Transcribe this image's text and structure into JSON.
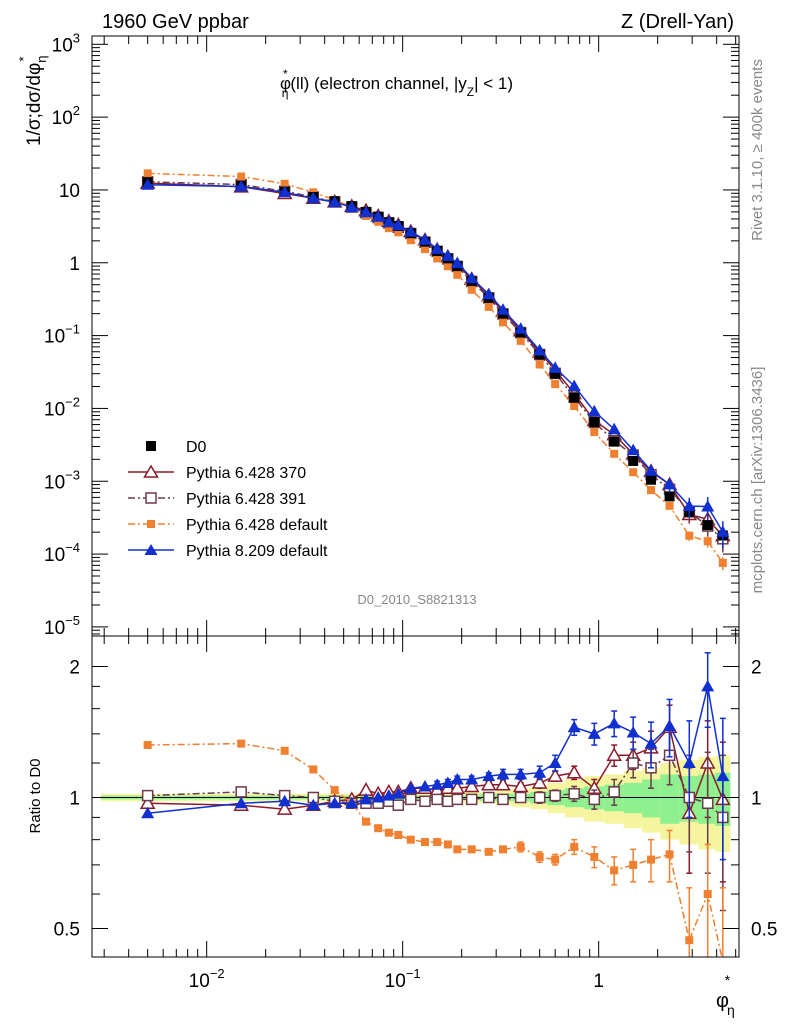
{
  "header": {
    "left_title": "1960 GeV ppbar",
    "right_title": "Z (Drell-Yan)",
    "plot_title_main": "φ",
    "plot_title_sup": "*",
    "plot_title_sub": "η",
    "plot_title_rest": "(ll) (electron channel, |y",
    "plot_title_ysub": "Z",
    "plot_title_end": "| < 1)",
    "analysis_id": "D0_2010_S8821313",
    "side_rivet": "Rivet 3.1.10, ≥ 400k events",
    "side_source": "mcplots.cern.ch [arXiv:1306.3436]"
  },
  "axes": {
    "main_ylabel": "1/σ;dσ/dφ",
    "main_ylabel_sub": "η",
    "main_ylabel_sup": "*",
    "ratio_ylabel": "Ratio to D0",
    "xlabel": "φ",
    "xlabel_sub": "η",
    "xlabel_sup": "*",
    "x_tick_labels": [
      {
        "base": "10",
        "exp": "−2"
      },
      {
        "base": "10",
        "exp": "−1"
      },
      {
        "base": "1",
        "exp": ""
      }
    ],
    "main_y_tick_labels": [
      {
        "base": "10",
        "exp": "−5"
      },
      {
        "base": "10",
        "exp": "−4"
      },
      {
        "base": "10",
        "exp": "−3"
      },
      {
        "base": "10",
        "exp": "−2"
      },
      {
        "base": "10",
        "exp": "−1"
      },
      {
        "base": "1",
        "exp": ""
      },
      {
        "base": "10",
        "exp": ""
      },
      {
        "base": "10",
        "exp": "2"
      },
      {
        "base": "10",
        "exp": "3"
      }
    ],
    "ratio_y_tick_labels": [
      "0.5",
      "1",
      "2"
    ]
  },
  "legend": [
    {
      "label": "D0",
      "color": "#000000",
      "marker": "filled-square"
    },
    {
      "label": "Pythia 6.428 370",
      "color": "#8b1a2b",
      "marker": "open-triangle"
    },
    {
      "label": "Pythia 6.428 391",
      "color": "#6b3a4b",
      "marker": "open-square"
    },
    {
      "label": "Pythia 6.428 default",
      "color": "#f08030",
      "marker": "filled-square"
    },
    {
      "label": "Pythia 8.209 default",
      "color": "#1030d0",
      "marker": "filled-triangle"
    }
  ],
  "chart_data": {
    "type": "line",
    "xscale": "log",
    "xlim": [
      0.0026,
      5.2
    ],
    "main": {
      "yscale": "log",
      "ylim": [
        7.5e-06,
        1300
      ]
    },
    "ratio": {
      "yscale": "log",
      "ylim": [
        0.43,
        2.35
      ]
    },
    "x": [
      0.005,
      0.015,
      0.025,
      0.035,
      0.045,
      0.055,
      0.065,
      0.075,
      0.085,
      0.095,
      0.11,
      0.13,
      0.15,
      0.17,
      0.19,
      0.225,
      0.275,
      0.325,
      0.4,
      0.5,
      0.6,
      0.75,
      0.95,
      1.2,
      1.5,
      1.85,
      2.3,
      2.9,
      3.6,
      4.3
    ],
    "series": [
      {
        "name": "D0",
        "values": [
          12.8,
          11.5,
          9.5,
          8.0,
          7.0,
          6.0,
          5.0,
          4.3,
          3.6,
          3.2,
          2.55,
          1.95,
          1.45,
          1.15,
          0.9,
          0.56,
          0.33,
          0.2,
          0.11,
          0.055,
          0.03,
          0.014,
          0.0065,
          0.0035,
          0.0019,
          0.00105,
          0.00062,
          0.00038,
          0.00025,
          0.00018
        ]
      },
      {
        "name": "Pythia 6.428 370",
        "ratios": [
          0.97,
          0.96,
          0.94,
          0.96,
          0.98,
          0.99,
          1.04,
          1.02,
          1.03,
          1.03,
          1.05,
          1.05,
          1.04,
          1.05,
          1.05,
          1.06,
          1.07,
          1.07,
          1.06,
          1.08,
          1.12,
          1.14,
          1.05,
          1.25,
          1.25,
          1.3,
          1.45,
          0.92,
          1.2,
          0.99
        ]
      },
      {
        "name": "Pythia 6.428 391",
        "ratios": [
          1.01,
          1.03,
          1.01,
          1.0,
          0.98,
          0.97,
          0.97,
          0.97,
          0.98,
          0.96,
          0.99,
          0.98,
          0.99,
          0.98,
          0.99,
          0.99,
          1.0,
          0.99,
          1.0,
          1.0,
          1.01,
          1.02,
          0.99,
          1.03,
          1.2,
          1.17,
          1.25,
          1.0,
          0.97,
          0.9
        ]
      },
      {
        "name": "Pythia 6.428 default",
        "ratios": [
          1.32,
          1.33,
          1.28,
          1.16,
          1.04,
          0.97,
          0.88,
          0.85,
          0.83,
          0.82,
          0.8,
          0.79,
          0.79,
          0.78,
          0.76,
          0.76,
          0.75,
          0.76,
          0.77,
          0.73,
          0.72,
          0.77,
          0.73,
          0.68,
          0.7,
          0.72,
          0.74,
          0.47,
          0.6,
          0.42
        ]
      },
      {
        "name": "Pythia 8.209 default",
        "ratios": [
          0.92,
          0.97,
          0.98,
          0.96,
          0.97,
          0.97,
          0.99,
          1.0,
          1.01,
          1.02,
          1.05,
          1.06,
          1.07,
          1.08,
          1.1,
          1.1,
          1.12,
          1.13,
          1.13,
          1.14,
          1.2,
          1.45,
          1.4,
          1.48,
          1.41,
          1.33,
          1.46,
          1.2,
          1.8,
          1.12
        ]
      }
    ],
    "ratio_errors": {
      "Pythia 6.428 370": [
        0.01,
        0.01,
        0.01,
        0.01,
        0.01,
        0.01,
        0.01,
        0.01,
        0.01,
        0.01,
        0.01,
        0.01,
        0.01,
        0.01,
        0.01,
        0.01,
        0.02,
        0.02,
        0.02,
        0.03,
        0.03,
        0.04,
        0.05,
        0.07,
        0.09,
        0.12,
        0.18,
        0.25,
        0.3,
        0.35
      ],
      "Pythia 6.428 391": [
        0.01,
        0.01,
        0.01,
        0.01,
        0.01,
        0.01,
        0.01,
        0.01,
        0.01,
        0.01,
        0.01,
        0.01,
        0.01,
        0.01,
        0.01,
        0.01,
        0.02,
        0.02,
        0.02,
        0.03,
        0.03,
        0.04,
        0.05,
        0.07,
        0.09,
        0.12,
        0.18,
        0.25,
        0.3,
        0.35
      ],
      "Pythia 6.428 default": [
        0.01,
        0.01,
        0.01,
        0.01,
        0.01,
        0.01,
        0.01,
        0.01,
        0.01,
        0.01,
        0.01,
        0.01,
        0.01,
        0.01,
        0.01,
        0.01,
        0.01,
        0.01,
        0.02,
        0.02,
        0.02,
        0.03,
        0.04,
        0.05,
        0.06,
        0.08,
        0.1,
        0.15,
        0.18,
        0.2
      ],
      "Pythia 8.209 default": [
        0.01,
        0.01,
        0.01,
        0.01,
        0.01,
        0.01,
        0.01,
        0.01,
        0.01,
        0.01,
        0.01,
        0.01,
        0.02,
        0.02,
        0.02,
        0.02,
        0.02,
        0.03,
        0.03,
        0.04,
        0.05,
        0.06,
        0.08,
        0.1,
        0.12,
        0.16,
        0.22,
        0.3,
        0.35,
        0.4
      ]
    },
    "band_inner": [
      0.01,
      0.01,
      0.01,
      0.01,
      0.01,
      0.01,
      0.01,
      0.01,
      0.01,
      0.01,
      0.01,
      0.01,
      0.01,
      0.01,
      0.01,
      0.01,
      0.02,
      0.02,
      0.02,
      0.03,
      0.04,
      0.05,
      0.06,
      0.07,
      0.08,
      0.1,
      0.13,
      0.12,
      0.13,
      0.14
    ],
    "band_outer": [
      0.02,
      0.02,
      0.02,
      0.02,
      0.02,
      0.02,
      0.02,
      0.02,
      0.02,
      0.02,
      0.02,
      0.02,
      0.02,
      0.03,
      0.03,
      0.03,
      0.03,
      0.04,
      0.05,
      0.06,
      0.08,
      0.1,
      0.12,
      0.13,
      0.15,
      0.17,
      0.2,
      0.22,
      0.24,
      0.25
    ]
  }
}
